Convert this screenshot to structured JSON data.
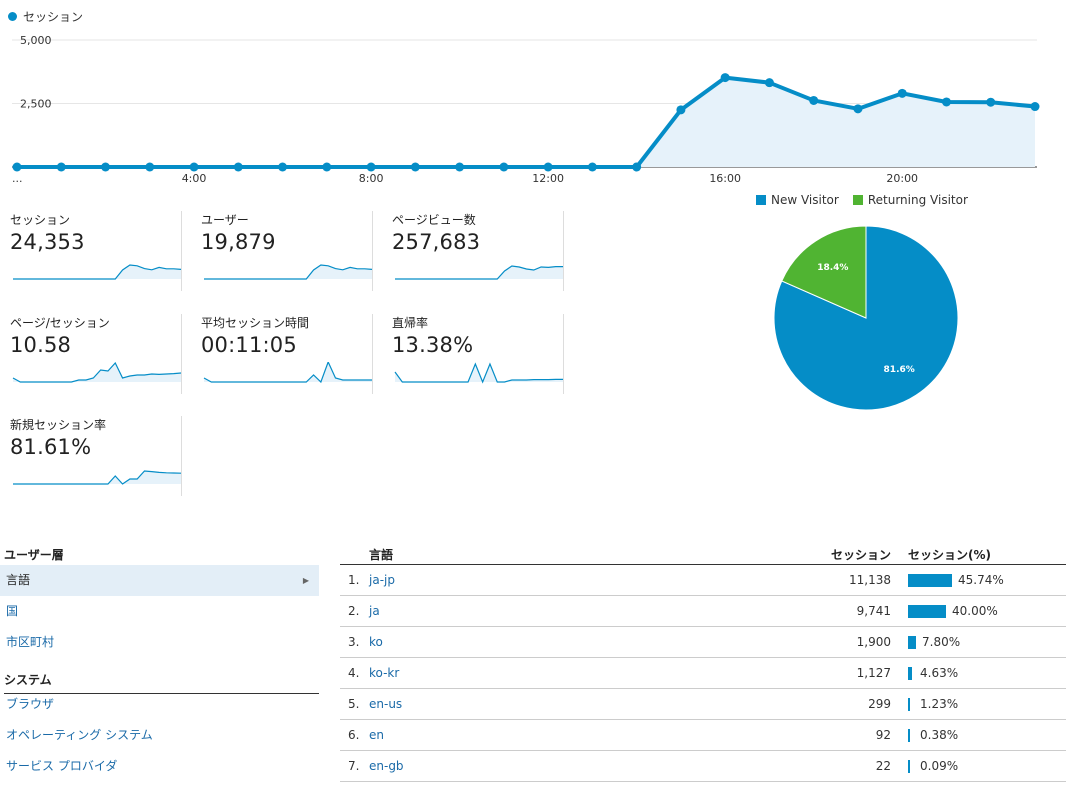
{
  "main_chart": {
    "legend": "セッション",
    "y_ticks": [
      "5,000",
      "2,500"
    ],
    "x_ticks": [
      "...",
      "4:00",
      "8:00",
      "12:00",
      "16:00",
      "20:00"
    ],
    "color": "#058dc7",
    "chart_data": {
      "type": "line",
      "x": [
        0,
        1,
        2,
        3,
        4,
        5,
        6,
        7,
        8,
        9,
        10,
        11,
        12,
        13,
        14,
        15,
        16,
        17,
        18,
        19,
        20,
        21,
        22,
        23
      ],
      "values": [
        0,
        0,
        0,
        0,
        0,
        0,
        0,
        0,
        0,
        0,
        0,
        0,
        0,
        0,
        0,
        2250,
        3520,
        3320,
        2620,
        2290,
        2900,
        2560,
        2550,
        2380
      ],
      "ylim": [
        0,
        5000
      ]
    }
  },
  "metrics": [
    {
      "label": "セッション",
      "value": "24,353",
      "spark": [
        0,
        0,
        0,
        0,
        0,
        0,
        0,
        0,
        0,
        0,
        0,
        0,
        0,
        0,
        0,
        0.45,
        0.7,
        0.66,
        0.52,
        0.46,
        0.58,
        0.51,
        0.51,
        0.48
      ]
    },
    {
      "label": "ユーザー",
      "value": "19,879",
      "spark": [
        0,
        0,
        0,
        0,
        0,
        0,
        0,
        0,
        0,
        0,
        0,
        0,
        0,
        0,
        0,
        0.45,
        0.7,
        0.66,
        0.52,
        0.46,
        0.58,
        0.51,
        0.51,
        0.48
      ]
    },
    {
      "label": "ページビュー数",
      "value": "257,683",
      "spark": [
        0,
        0,
        0,
        0,
        0,
        0,
        0,
        0,
        0,
        0,
        0,
        0,
        0,
        0,
        0,
        0.4,
        0.65,
        0.6,
        0.5,
        0.45,
        0.6,
        0.58,
        0.62,
        0.62
      ]
    },
    {
      "label": "ページ/セッション",
      "value": "10.58",
      "spark": [
        0.2,
        0,
        0,
        0,
        0,
        0,
        0,
        0,
        0,
        0.1,
        0.1,
        0.2,
        0.6,
        0.55,
        0.95,
        0.2,
        0.3,
        0.35,
        0.35,
        0.4,
        0.38,
        0.4,
        0.42,
        0.45
      ]
    },
    {
      "label": "平均セッション時間",
      "value": "00:11:05",
      "spark": [
        0.2,
        0,
        0,
        0,
        0,
        0,
        0,
        0,
        0,
        0,
        0,
        0,
        0,
        0,
        0,
        0.35,
        0,
        1,
        0.2,
        0.1,
        0.1,
        0.1,
        0.1,
        0.1
      ]
    },
    {
      "label": "直帰率",
      "value": "13.38%",
      "spark": [
        0.5,
        0,
        0,
        0,
        0,
        0,
        0,
        0,
        0,
        0,
        0,
        0.9,
        0,
        0.9,
        0,
        0,
        0.1,
        0.1,
        0.1,
        0.12,
        0.12,
        0.12,
        0.13,
        0.13
      ]
    },
    {
      "label": "新規セッション率",
      "value": "81.61%",
      "spark": [
        0,
        0,
        0,
        0,
        0,
        0,
        0,
        0,
        0,
        0,
        0,
        0,
        0,
        0,
        0.4,
        0,
        0.25,
        0.25,
        0.65,
        0.62,
        0.58,
        0.56,
        0.55,
        0.54
      ]
    }
  ],
  "pie": {
    "legend": [
      {
        "label": "New Visitor",
        "color": "#058dc7"
      },
      {
        "label": "Returning Visitor",
        "color": "#50b432"
      }
    ],
    "chart_data": {
      "type": "pie",
      "labels": [
        "New Visitor",
        "Returning Visitor"
      ],
      "values": [
        81.6,
        18.4
      ],
      "value_labels": [
        "81.6%",
        "18.4%"
      ]
    }
  },
  "sidebar": {
    "sections": [
      {
        "title": "ユーザー層",
        "items": [
          "言語",
          "国",
          "市区町村"
        ]
      },
      {
        "title": "システム",
        "items": [
          "ブラウザ",
          "オペレーティング システム",
          "サービス プロバイダ"
        ]
      }
    ]
  },
  "table": {
    "headers": {
      "lang": "言語",
      "sessions": "セッション",
      "pct": "セッション(%)"
    },
    "rows": [
      {
        "rank": "1.",
        "lang": "ja-jp",
        "sessions": "11,138",
        "pct": "45.74%",
        "share": 45.74
      },
      {
        "rank": "2.",
        "lang": "ja",
        "sessions": "9,741",
        "pct": "40.00%",
        "share": 40.0
      },
      {
        "rank": "3.",
        "lang": "ko",
        "sessions": "1,900",
        "pct": "7.80%",
        "share": 7.8
      },
      {
        "rank": "4.",
        "lang": "ko-kr",
        "sessions": "1,127",
        "pct": "4.63%",
        "share": 4.63
      },
      {
        "rank": "5.",
        "lang": "en-us",
        "sessions": "299",
        "pct": "1.23%",
        "share": 1.23
      },
      {
        "rank": "6.",
        "lang": "en",
        "sessions": "92",
        "pct": "0.38%",
        "share": 0.38
      },
      {
        "rank": "7.",
        "lang": "en-gb",
        "sessions": "22",
        "pct": "0.09%",
        "share": 0.09
      }
    ]
  }
}
